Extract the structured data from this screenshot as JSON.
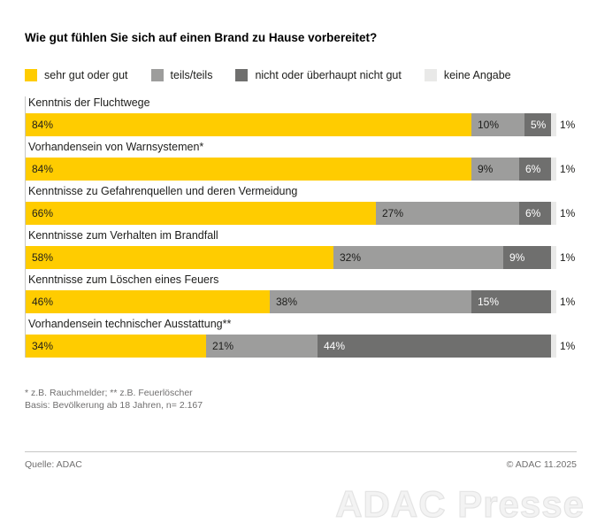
{
  "title": "Wie gut fühlen Sie sich auf einen Brand zu Hause vorbereitet?",
  "colors": {
    "very_good": "#FFCC00",
    "partly": "#9D9D9C",
    "not_good": "#6F6F6E",
    "no_answer": "#E9E9E8",
    "axis_line": "#C6C6C5",
    "footnote_text": "#706F6F"
  },
  "legend": [
    {
      "label": "sehr gut oder gut",
      "color": "#FFCC00"
    },
    {
      "label": "teils/teils",
      "color": "#9D9D9C"
    },
    {
      "label": "nicht oder überhaupt nicht gut",
      "color": "#6F6F6E"
    },
    {
      "label": "keine Angabe",
      "color": "#E9E9E8"
    }
  ],
  "chart_data": {
    "type": "bar",
    "orientation": "horizontal",
    "stacked": true,
    "value_suffix": "%",
    "xlim": [
      0,
      100
    ],
    "categories": [
      "Kenntnis der Fluchtwege",
      "Vorhandensein von Warnsystemen*",
      "Kenntnisse zu Gefahrenquellen und deren Vermeidung",
      "Kenntnisse zum Verhalten im Brandfall",
      "Kenntnisse zum Löschen eines Feuers",
      "Vorhandensein technischer Ausstattung**"
    ],
    "series": [
      {
        "name": "sehr gut oder gut",
        "values": [
          84,
          84,
          66,
          58,
          46,
          34
        ],
        "color": "#FFCC00",
        "label_color": "#1D1D1B",
        "label_position": "inside"
      },
      {
        "name": "teils/teils",
        "values": [
          10,
          9,
          27,
          32,
          38,
          21
        ],
        "color": "#9D9D9C",
        "label_color": "#1D1D1B",
        "label_position": "inside"
      },
      {
        "name": "nicht oder überhaupt nicht gut",
        "values": [
          5,
          6,
          6,
          9,
          15,
          44
        ],
        "color": "#6F6F6E",
        "label_color": "#FFFFFF",
        "label_position": "inside"
      },
      {
        "name": "keine Angabe",
        "values": [
          1,
          1,
          1,
          1,
          1,
          1
        ],
        "color": "#E9E9E8",
        "label_color": "#1D1D1B",
        "label_position": "outside"
      }
    ]
  },
  "footnotes": [
    "* z.B. Rauchmelder; ** z.B. Feuerlöscher",
    "Basis: Bevölkerung ab 18 Jahren, n= 2.167"
  ],
  "footer": {
    "source": "Quelle: ADAC",
    "copyright": "© ADAC 11.2025"
  },
  "watermark": "ADAC Presse"
}
